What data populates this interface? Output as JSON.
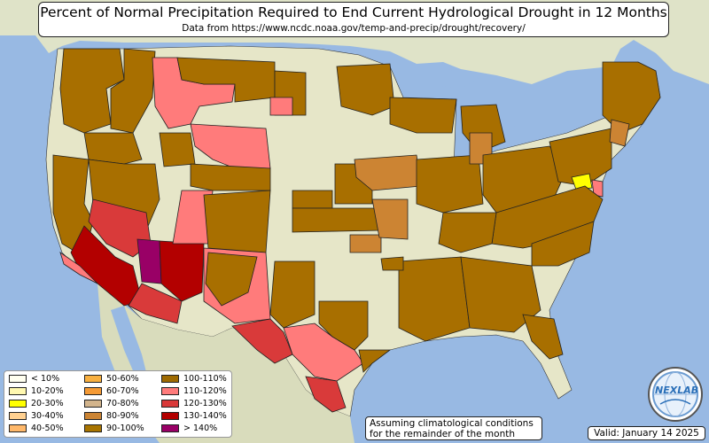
{
  "title": "Percent of Normal Precipitation Required to End Current Hydrological Drought in 12 Months",
  "subtitle": "Data from https://www.ncdc.noaa.gov/temp-and-precip/drought/recovery/",
  "legend": [
    {
      "label": "< 10%",
      "color": "#fffff0"
    },
    {
      "label": "10-20%",
      "color": "#fff8b0"
    },
    {
      "label": "20-30%",
      "color": "#ffff00"
    },
    {
      "label": "30-40%",
      "color": "#ffd090"
    },
    {
      "label": "40-50%",
      "color": "#ffb86a"
    },
    {
      "label": "50-60%",
      "color": "#f8b040"
    },
    {
      "label": "60-70%",
      "color": "#f59a34"
    },
    {
      "label": "70-80%",
      "color": "#d2b48c"
    },
    {
      "label": "80-90%",
      "color": "#cc8433"
    },
    {
      "label": "90-100%",
      "color": "#a87400"
    },
    {
      "label": "100-110%",
      "color": "#9e6a00"
    },
    {
      "label": "110-120%",
      "color": "#ff7b7b"
    },
    {
      "label": "120-130%",
      "color": "#d93a3a"
    },
    {
      "label": "130-140%",
      "color": "#b30000"
    },
    {
      "label": "> 140%",
      "color": "#990066"
    }
  ],
  "note_line1": "Assuming climatological conditions",
  "note_line2": "for the remainder of the month",
  "valid": "Valid: January 14 2025",
  "logo_text": "NEXLAB",
  "colors": {
    "ocean": "#98b9e3",
    "land": "#e6e6c8",
    "brown": "#a86f00",
    "pink": "#ff7b7b",
    "red": "#d93a3a",
    "darkred": "#b30000",
    "magenta": "#990066",
    "tan": "#cc8433",
    "yellow": "#ffff00"
  }
}
